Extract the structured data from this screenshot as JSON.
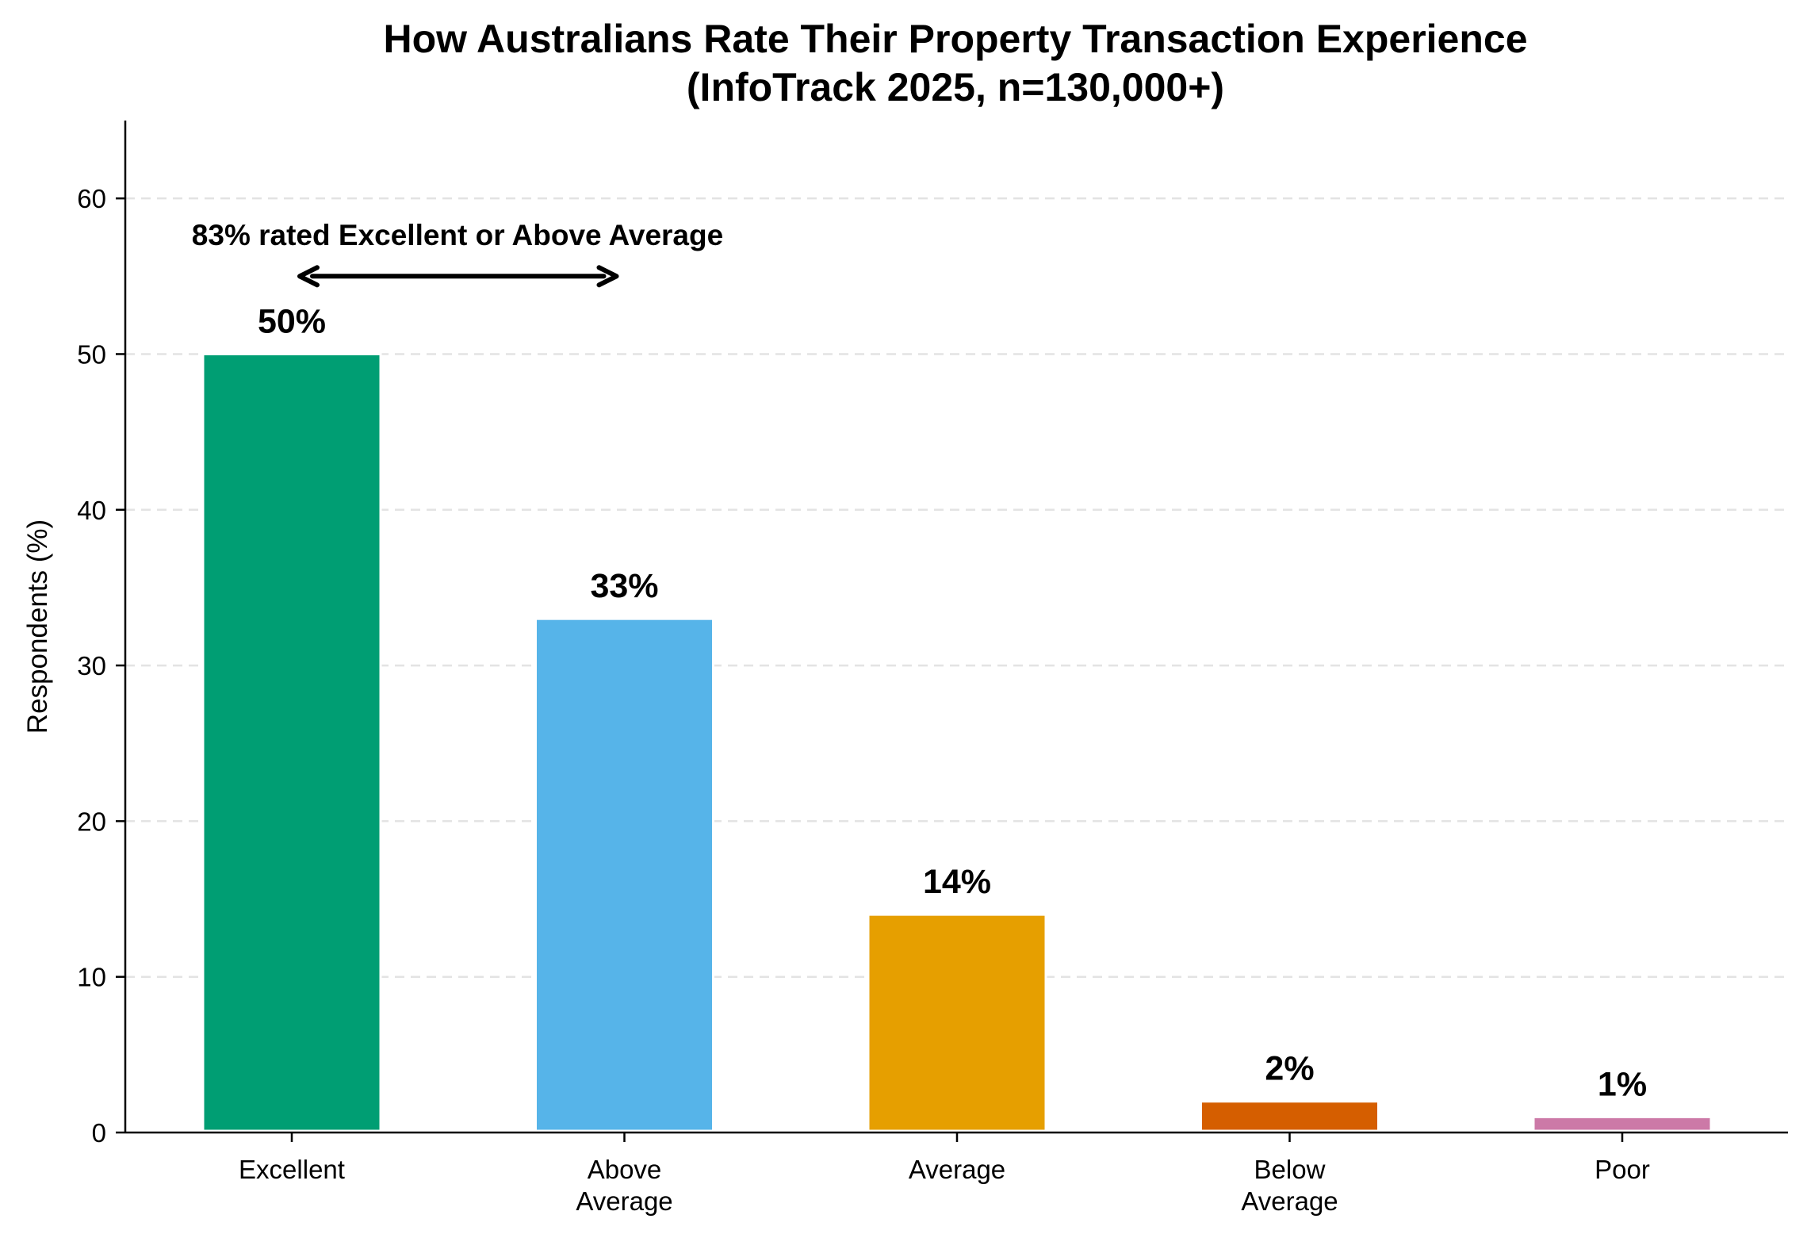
{
  "chart_data": {
    "type": "bar",
    "title": "How Australians Rate Their Property Transaction Experience",
    "subtitle": "(InfoTrack 2025, n=130,000+)",
    "xlabel": "",
    "ylabel": "Respondents (%)",
    "ylim": [
      0,
      65
    ],
    "yticks": [
      0,
      10,
      20,
      30,
      40,
      50,
      60
    ],
    "grid": "horizontal dashed",
    "categories": [
      [
        "Excellent"
      ],
      [
        "Above",
        "Average"
      ],
      [
        "Average"
      ],
      [
        "Below",
        "Average"
      ],
      [
        "Poor"
      ]
    ],
    "values": [
      50,
      33,
      14,
      2,
      1
    ],
    "value_labels": [
      "50%",
      "33%",
      "14%",
      "2%",
      "1%"
    ],
    "colors": [
      "#009E73",
      "#56B4E9",
      "#E69F00",
      "#D55E00",
      "#CC79A7"
    ],
    "annotation": {
      "text": "83% rated Excellent or Above Average",
      "arrow_between": [
        0,
        1
      ],
      "arrow_y": 55,
      "style": "double-headed arrow"
    }
  }
}
